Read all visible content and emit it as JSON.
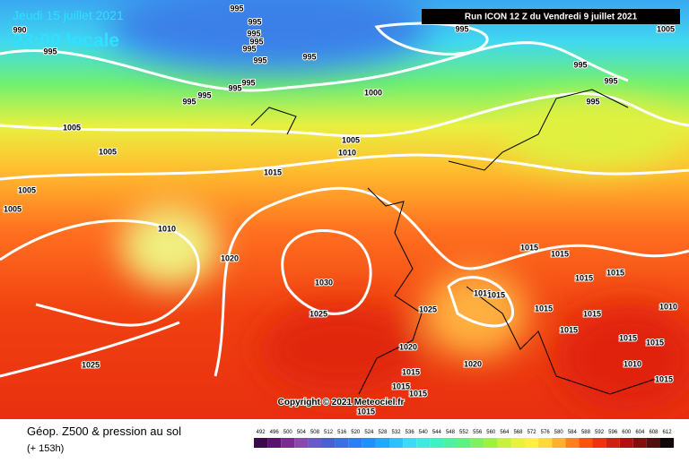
{
  "header": {
    "date": "Jeudi 15 juillet 2021",
    "time": "23:00 locale",
    "run": "Run ICON 12 Z du Vendredi 9 juillet 2021"
  },
  "copyright": "Copyright © 2021 Meteociel.fr",
  "footer": {
    "title": "Géop. Z500 & pression au sol",
    "lead": "(+ 153h)"
  },
  "isobar_labels": [
    995,
    995,
    995,
    995,
    995,
    995,
    995,
    995,
    995,
    995,
    995,
    995,
    995,
    995,
    995,
    995,
    1005,
    1000,
    1005,
    1005,
    1005,
    1010,
    1015,
    1005,
    1005,
    1010,
    1020,
    1030,
    1025,
    1025,
    1015,
    1015,
    1015,
    1015,
    1010,
    1015,
    1015,
    1015,
    1010,
    1015,
    1020,
    1025,
    1015,
    1020,
    1015,
    1010,
    1015,
    1015,
    1015,
    1015,
    1015,
    990
  ],
  "legend": {
    "values": [
      492,
      496,
      500,
      504,
      508,
      512,
      516,
      520,
      524,
      528,
      532,
      536,
      540,
      544,
      548,
      552,
      556,
      560,
      564,
      568,
      572,
      576,
      580,
      584,
      588,
      592,
      596,
      600,
      604,
      608,
      612
    ],
    "colors": [
      "#3a0a4a",
      "#5a1470",
      "#7a2a90",
      "#8a48b0",
      "#6a5ac8",
      "#4a60d0",
      "#3a70e0",
      "#2a80f0",
      "#1e90ff",
      "#20a8ff",
      "#30c0ff",
      "#40d8f8",
      "#40e8e0",
      "#40f0c0",
      "#50f0a0",
      "#60f080",
      "#80f060",
      "#a0f040",
      "#c8f040",
      "#e8f040",
      "#fff040",
      "#ffd840",
      "#ffb030",
      "#ff8020",
      "#ff5010",
      "#f03010",
      "#d02010",
      "#b01010",
      "#801010",
      "#501010",
      "#100808"
    ]
  }
}
